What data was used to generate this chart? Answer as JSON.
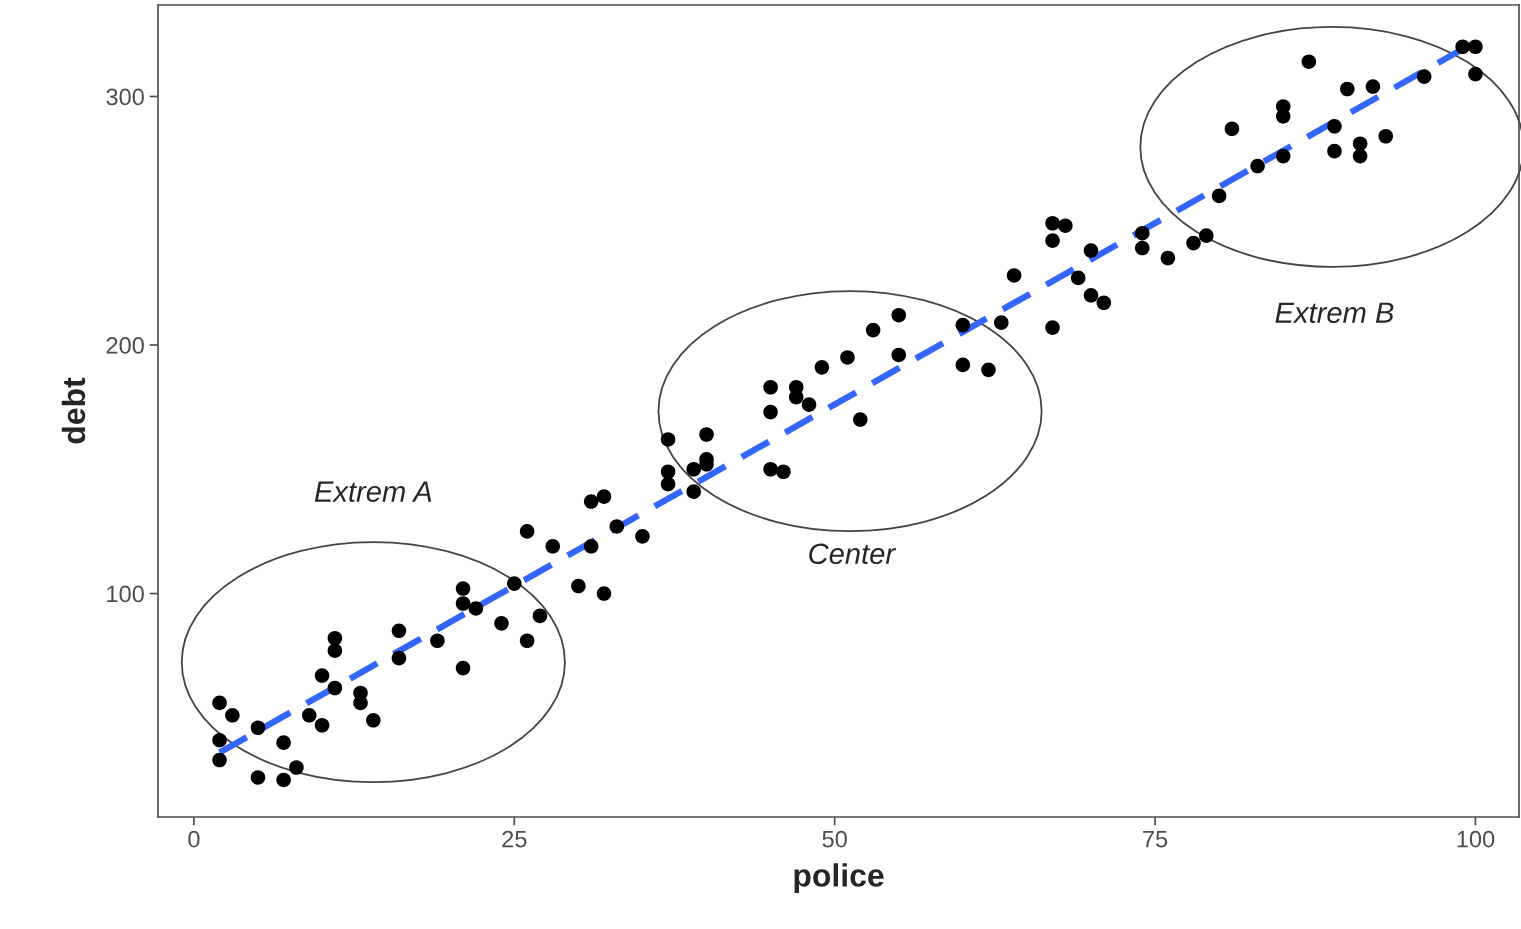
{
  "chart_data": {
    "type": "scatter",
    "xlabel": "police",
    "ylabel": "debt",
    "xlim": [
      -2.8,
      103.4
    ],
    "ylim": [
      10.1,
      336.8
    ],
    "xticks": [
      0,
      25,
      50,
      75,
      100
    ],
    "yticks": [
      100,
      200,
      300
    ],
    "grid": false,
    "legend": false,
    "marker": "circle",
    "series": [
      {
        "color": "#000000",
        "x": [
          2,
          3,
          2,
          2,
          5,
          5,
          7,
          7,
          8,
          9,
          10,
          10,
          11,
          11,
          11,
          13,
          13,
          14,
          16,
          16,
          19,
          21,
          21,
          21,
          22,
          24,
          25,
          26,
          27,
          26,
          28,
          30,
          31,
          31,
          32,
          32,
          33,
          35,
          37,
          37,
          37,
          39,
          39,
          40,
          40,
          40,
          45,
          45,
          45,
          46,
          47,
          47,
          48,
          49,
          51,
          52,
          53,
          55,
          55,
          60,
          60,
          62,
          63,
          64,
          67,
          67,
          68,
          67,
          70,
          69,
          70,
          71,
          74,
          74,
          76,
          78,
          79,
          80,
          81,
          83,
          85,
          85,
          85,
          87,
          89,
          89,
          90,
          91,
          91,
          92,
          93,
          96,
          99,
          100,
          100
        ],
        "values": [
          56,
          51,
          41,
          33,
          46,
          26,
          40,
          25,
          30,
          51,
          47,
          67,
          82,
          77,
          62,
          60,
          56,
          49,
          85,
          74,
          81,
          70,
          102,
          96,
          94,
          88,
          104,
          81,
          91,
          125,
          119,
          103,
          119,
          137,
          139,
          100,
          127,
          123,
          162,
          149,
          144,
          150,
          141,
          164,
          154,
          152,
          183,
          173,
          150,
          149,
          183,
          179,
          176,
          191,
          195,
          170,
          206,
          212,
          196,
          208,
          192,
          190,
          209,
          228,
          207,
          249,
          248,
          242,
          238,
          227,
          220,
          217,
          245,
          239,
          235,
          241,
          244,
          260,
          287,
          272,
          296,
          292,
          276,
          314,
          288,
          278,
          303,
          281,
          276,
          304,
          284,
          308,
          320,
          320,
          309
        ]
      },
      {
        "type": "line",
        "color": "#3366ff",
        "line_style": "dashed",
        "marker": "none",
        "x": [
          2,
          100
        ],
        "values": [
          36,
          322
        ]
      }
    ],
    "annotations": [
      "Extrem A",
      "Center",
      "Extrem B"
    ]
  }
}
